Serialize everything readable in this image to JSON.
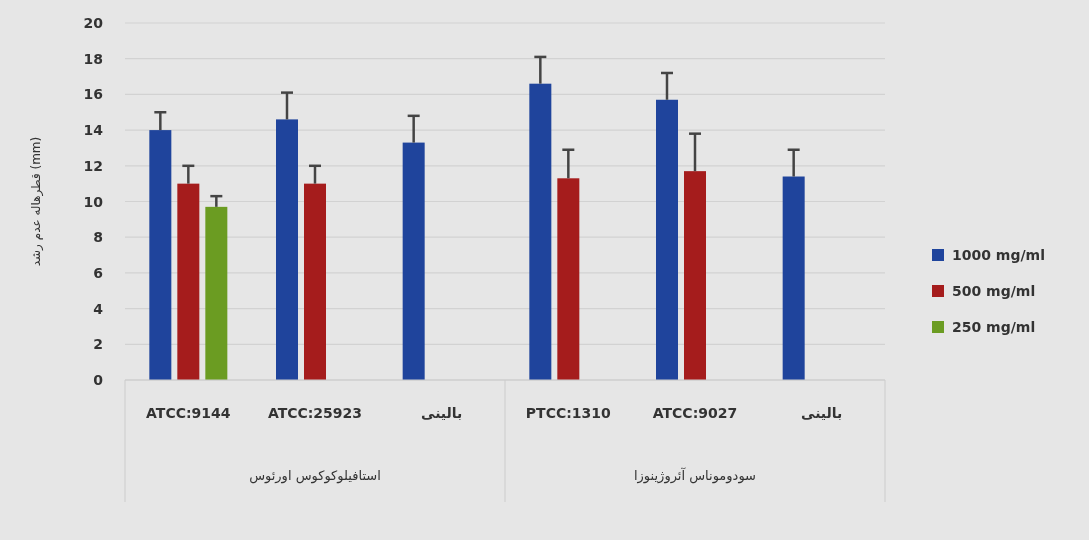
{
  "chart_data": {
    "type": "bar",
    "ylabel": "قطرهاله عدم رشد (mm)",
    "categories": [
      "ATCC:9144",
      "ATCC:25923",
      "بالینی",
      "PTCC:1310",
      "ATCC:9027",
      "بالینی"
    ],
    "annotations": [
      "استافیلوکوکوس اورئوس",
      "سودوموناس آئروژینوزا"
    ],
    "series": [
      {
        "name": "1000 mg/ml",
        "color": "#1f449c",
        "values": [
          14,
          14.6,
          13.3,
          16.6,
          15.7,
          11.4
        ],
        "errors": [
          [
            14,
            15
          ],
          [
            14.6,
            16.1
          ],
          [
            13.3,
            14.8
          ],
          [
            16.6,
            18.1
          ],
          [
            15.7,
            17.2
          ],
          [
            11.4,
            12.9
          ]
        ]
      },
      {
        "name": "500 mg/ml",
        "color": "#a51c1c",
        "values": [
          11,
          11,
          null,
          11.3,
          11.7,
          null
        ],
        "errors": [
          [
            11,
            12
          ],
          [
            11,
            12
          ],
          null,
          [
            11.3,
            12.9
          ],
          [
            11.7,
            13.8
          ],
          null
        ]
      },
      {
        "name": "250 mg/ml",
        "color": "#6b9c22",
        "values": [
          9.7,
          null,
          null,
          null,
          null,
          null
        ],
        "errors": [
          [
            9.7,
            10.3
          ],
          null,
          null,
          null,
          null,
          null
        ]
      }
    ],
    "ylim": [
      0,
      20
    ],
    "yticks": [
      0,
      2,
      4,
      6,
      8,
      10,
      12,
      14,
      16,
      18,
      20
    ],
    "grid": "y",
    "legend": "right"
  }
}
